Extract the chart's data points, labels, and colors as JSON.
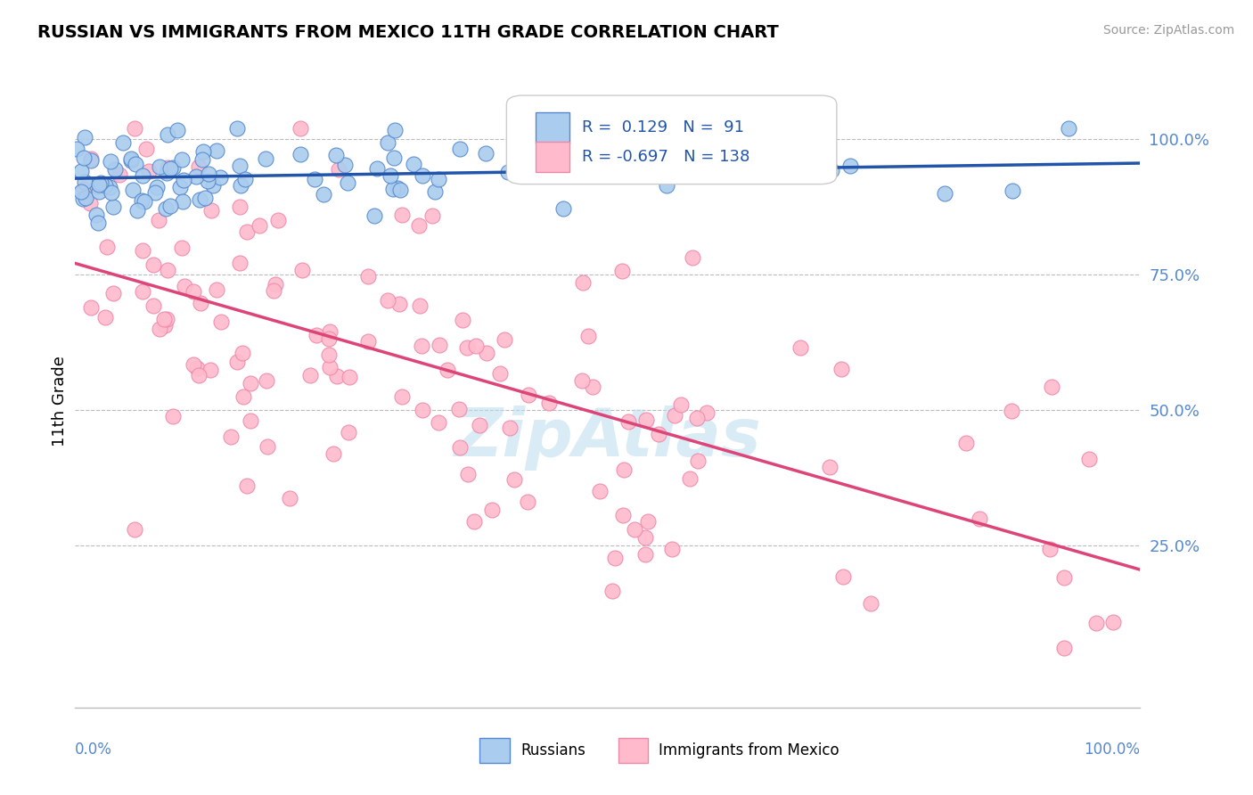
{
  "title": "RUSSIAN VS IMMIGRANTS FROM MEXICO 11TH GRADE CORRELATION CHART",
  "source": "Source: ZipAtlas.com",
  "ylabel": "11th Grade",
  "ytick_labels": [
    "25.0%",
    "50.0%",
    "75.0%",
    "100.0%"
  ],
  "ytick_positions": [
    0.25,
    0.5,
    0.75,
    1.0
  ],
  "russian_R": 0.129,
  "russian_N": 91,
  "mexico_R": -0.697,
  "mexico_N": 138,
  "russian_color": "#aaccee",
  "russian_edge_color": "#5588cc",
  "russian_line_color": "#2255aa",
  "mexico_color": "#ffbbcc",
  "mexico_edge_color": "#ee88aa",
  "mexico_line_color": "#dd4477",
  "background_color": "#ffffff",
  "watermark": "ZipAtlas",
  "xlim": [
    0.0,
    1.0
  ],
  "ylim": [
    -0.05,
    1.08
  ]
}
